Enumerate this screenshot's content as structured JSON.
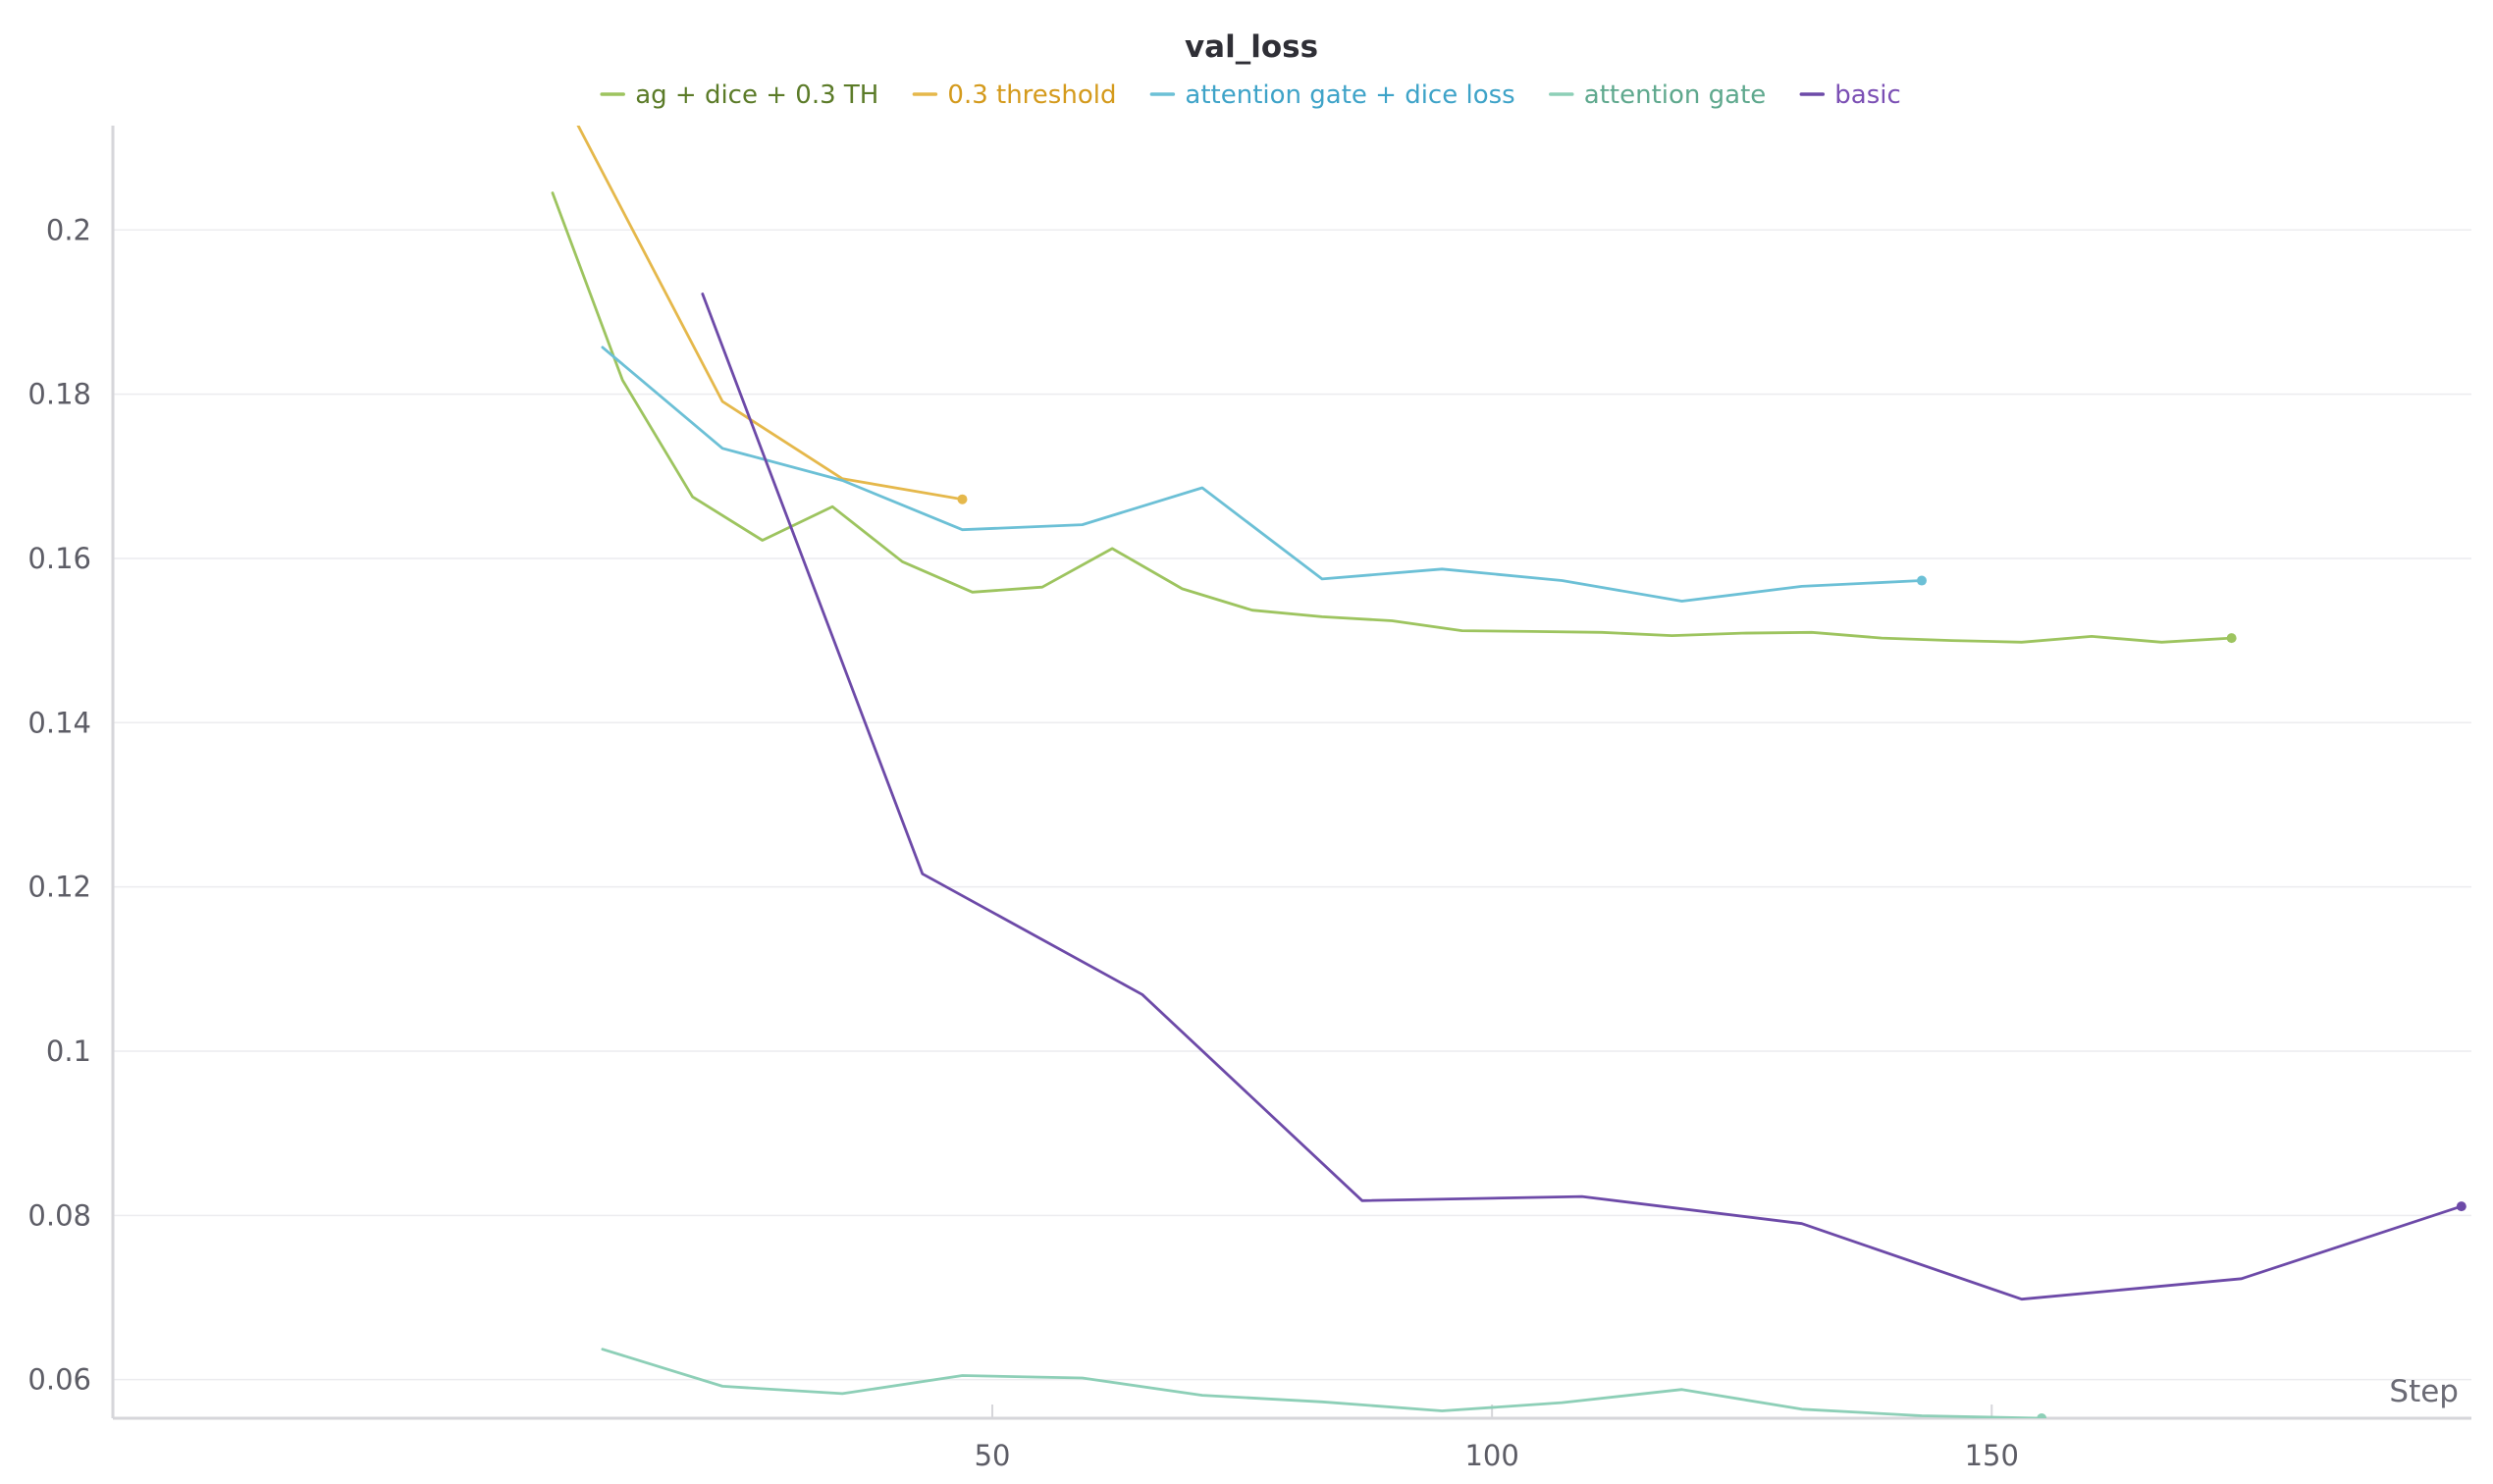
{
  "chart_data": {
    "type": "line",
    "title": "val_loss",
    "xlabel": "Step",
    "ylabel": "",
    "xlim": [
      -38,
      198
    ],
    "ylim": [
      0.0553,
      0.2127
    ],
    "x_ticks": [
      50,
      100,
      150
    ],
    "x_tick_labels": [
      "50",
      "100",
      "150"
    ],
    "y_ticks": [
      0.06,
      0.08,
      0.1,
      0.12,
      0.14,
      0.16,
      0.18,
      0.2
    ],
    "y_tick_labels": [
      "0.06",
      "0.08",
      "0.1",
      "0.12",
      "0.14",
      "0.16",
      "0.18",
      "0.2"
    ],
    "grid": "horizontal",
    "legend_position": "top-center",
    "series": [
      {
        "name": "ag + dice + 0.3 TH",
        "color": "#9dc45f",
        "label_color": "#5b7b28",
        "x": [
          6,
          13,
          20,
          27,
          34,
          41,
          48,
          55,
          62,
          69,
          76,
          83,
          90,
          97,
          104,
          111,
          118,
          125,
          132,
          139,
          146,
          153,
          160,
          167,
          174
        ],
        "y": [
          0.2045,
          0.1817,
          0.1675,
          0.1622,
          0.1663,
          0.1596,
          0.1559,
          0.1565,
          0.1612,
          0.1563,
          0.1537,
          0.1529,
          0.1524,
          0.1512,
          0.1511,
          0.151,
          0.1506,
          0.1509,
          0.151,
          0.1503,
          0.15,
          0.1498,
          0.1505,
          0.1498,
          0.1503
        ]
      },
      {
        "name": "0.3 threshold",
        "color": "#e5b84b",
        "label_color": "#d49a1c",
        "x": [
          -38,
          23,
          35,
          47
        ],
        "y": [
          0.321,
          0.1791,
          0.1697,
          0.1672
        ]
      },
      {
        "name": "attention gate + dice loss",
        "color": "#6cc0d6",
        "label_color": "#3ea3c8",
        "x": [
          11,
          23,
          35,
          47,
          59,
          71,
          83,
          95,
          107,
          119,
          131,
          143
        ],
        "y": [
          0.1857,
          0.1734,
          0.1695,
          0.1635,
          0.1641,
          0.1686,
          0.1575,
          0.1587,
          0.1573,
          0.1548,
          0.1566,
          0.1573
        ]
      },
      {
        "name": "attention gate",
        "color": "#8dcfb7",
        "label_color": "#5ea88d",
        "x": [
          11,
          23,
          35,
          47,
          59,
          71,
          83,
          95,
          107,
          119,
          131,
          143,
          155
        ],
        "y": [
          0.0637,
          0.0592,
          0.0583,
          0.0605,
          0.0602,
          0.0581,
          0.0573,
          0.0562,
          0.0572,
          0.0588,
          0.0564,
          0.0556,
          0.0553
        ]
      },
      {
        "name": "basic",
        "color": "#6d4aa8",
        "label_color": "#7b4fb4",
        "x": [
          21,
          43,
          65,
          87,
          109,
          131,
          153,
          175,
          197
        ],
        "y": [
          0.1922,
          0.1216,
          0.1069,
          0.0818,
          0.0823,
          0.079,
          0.0698,
          0.0723,
          0.0811
        ]
      }
    ]
  }
}
